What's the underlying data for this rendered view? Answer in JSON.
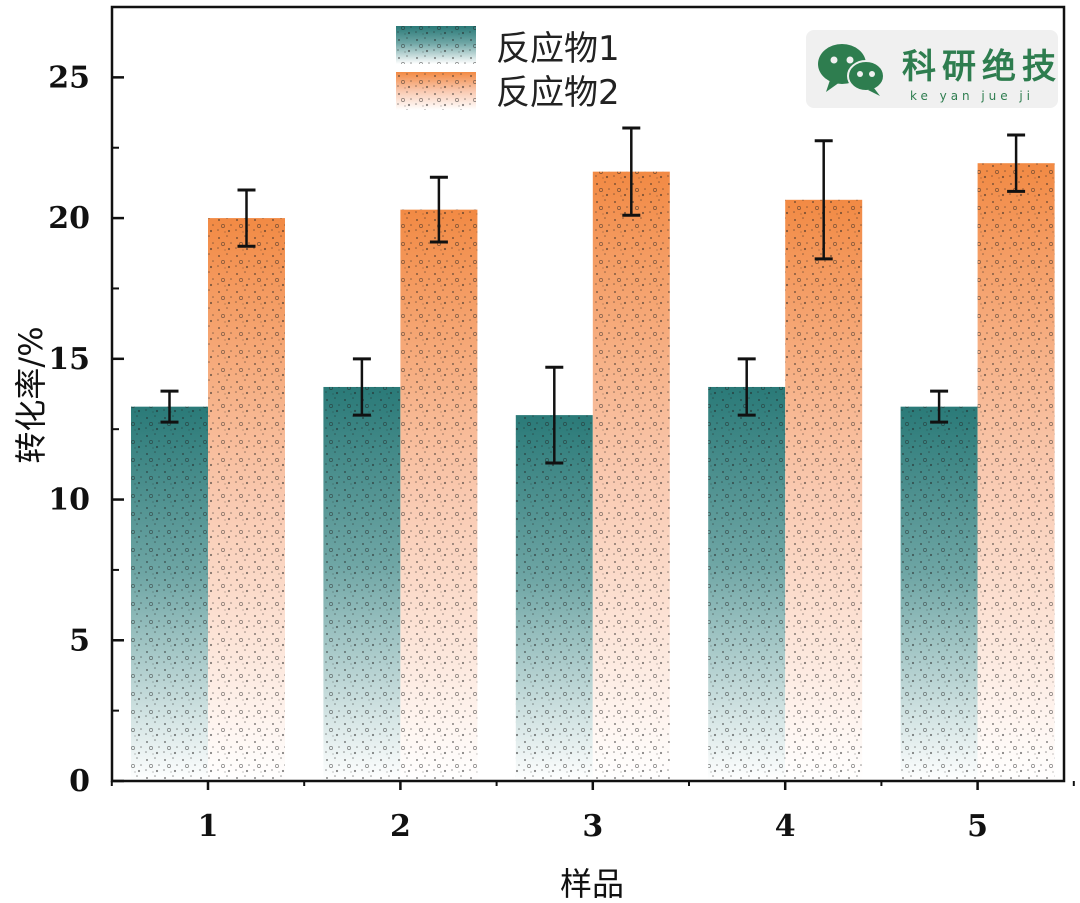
{
  "chart_data": {
    "type": "bar",
    "categories": [
      "1",
      "2",
      "3",
      "4",
      "5"
    ],
    "series": [
      {
        "name": "反应物1",
        "values": [
          13.3,
          14.0,
          13.0,
          14.0,
          13.3
        ],
        "errors": [
          0.55,
          1.0,
          1.7,
          1.0,
          0.55
        ],
        "color_top": "#2a7a78",
        "color_bottom": "#ffffff"
      },
      {
        "name": "反应物2",
        "values": [
          20.0,
          20.3,
          21.65,
          20.65,
          21.95
        ],
        "errors": [
          1.0,
          1.15,
          1.55,
          2.1,
          1.0
        ],
        "color_top": "#f28a44",
        "color_bottom": "#ffffff"
      }
    ],
    "xlabel": "样品",
    "ylabel": "转化率/%",
    "ylim": [
      0,
      27.5
    ],
    "yticks": [
      0,
      5,
      10,
      15,
      20,
      25
    ],
    "grid": false,
    "legend_position": "top-center"
  },
  "watermark": {
    "title": "科研绝技",
    "pinyin": "ke yan jue ji",
    "icon": "wechat-icon",
    "color": "#2e7d4f"
  }
}
